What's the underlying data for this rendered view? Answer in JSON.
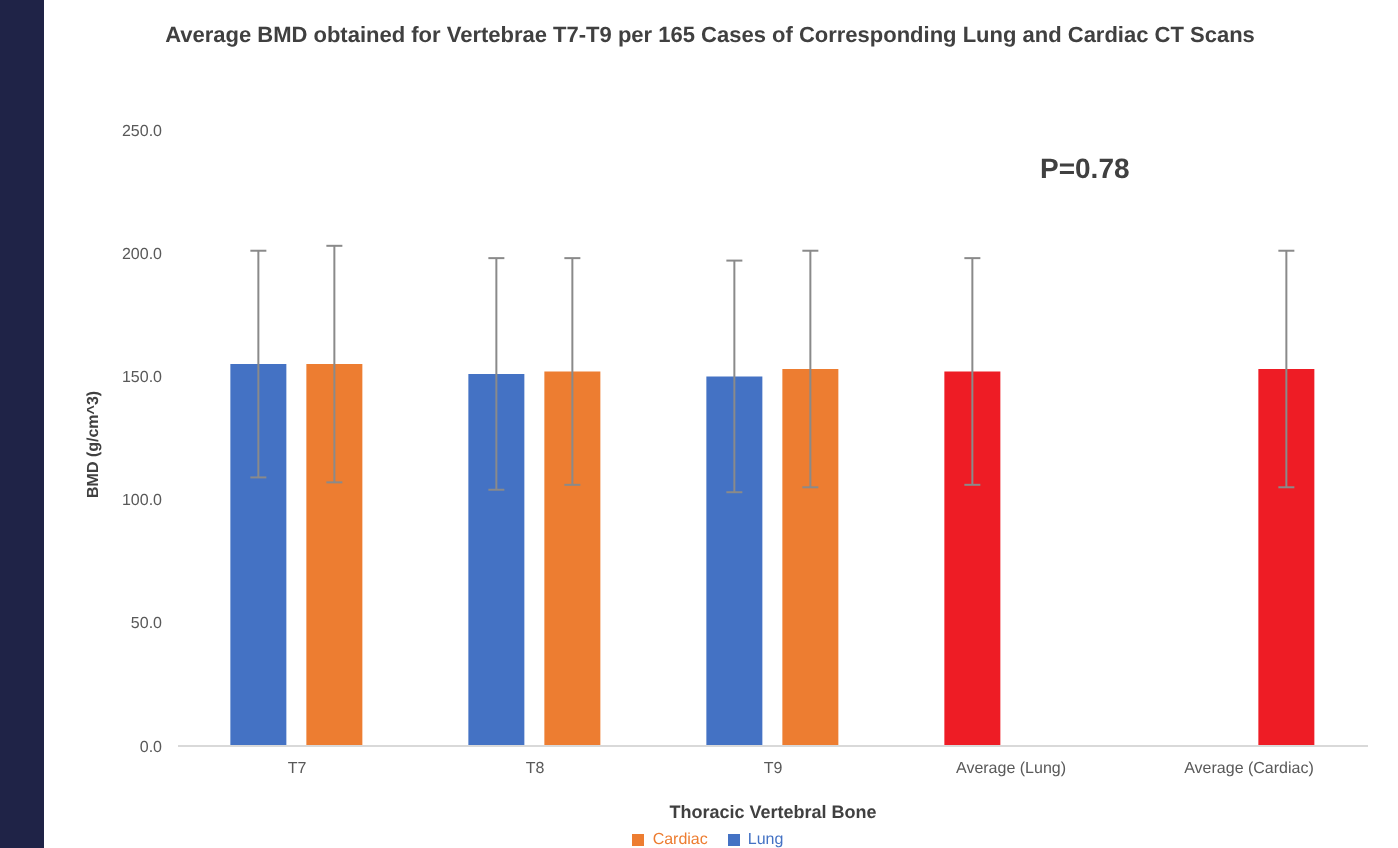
{
  "chart_data": {
    "type": "bar",
    "title": "Average BMD obtained for Vertebrae T7-T9 per 165 Cases of Corresponding Lung and Cardiac CT Scans",
    "xlabel": "Thoracic Vertebral Bone",
    "ylabel": "BMD (g/cm^3)",
    "categories": [
      "T7",
      "T8",
      "T9",
      "Average (Lung)",
      "Average (Cardiac)"
    ],
    "series": [
      {
        "name": "Lung",
        "color": "#4472c4",
        "colors": [
          "#4472c4",
          "#4472c4",
          "#4472c4",
          "#ee1c25",
          null
        ],
        "values": [
          155,
          151,
          150,
          152,
          null
        ],
        "errors": [
          46,
          47,
          47,
          46,
          null
        ]
      },
      {
        "name": "Cardiac",
        "color": "#ed7d31",
        "colors": [
          "#ed7d31",
          "#ed7d31",
          "#ed7d31",
          null,
          "#ee1c25"
        ],
        "values": [
          155,
          152,
          153,
          null,
          153
        ],
        "errors": [
          48,
          46,
          48,
          null,
          48
        ]
      }
    ],
    "ylim": [
      0,
      250
    ],
    "yticks": [
      {
        "value": 0,
        "label": "0.0"
      },
      {
        "value": 50,
        "label": "50.0"
      },
      {
        "value": 100,
        "label": "100.0"
      },
      {
        "value": 150,
        "label": "150.0"
      },
      {
        "value": 200,
        "label": "200.0"
      },
      {
        "value": 250,
        "label": "250.0"
      }
    ],
    "grid": false,
    "legend": "bottom",
    "annotations": [
      "P=0.78"
    ]
  }
}
